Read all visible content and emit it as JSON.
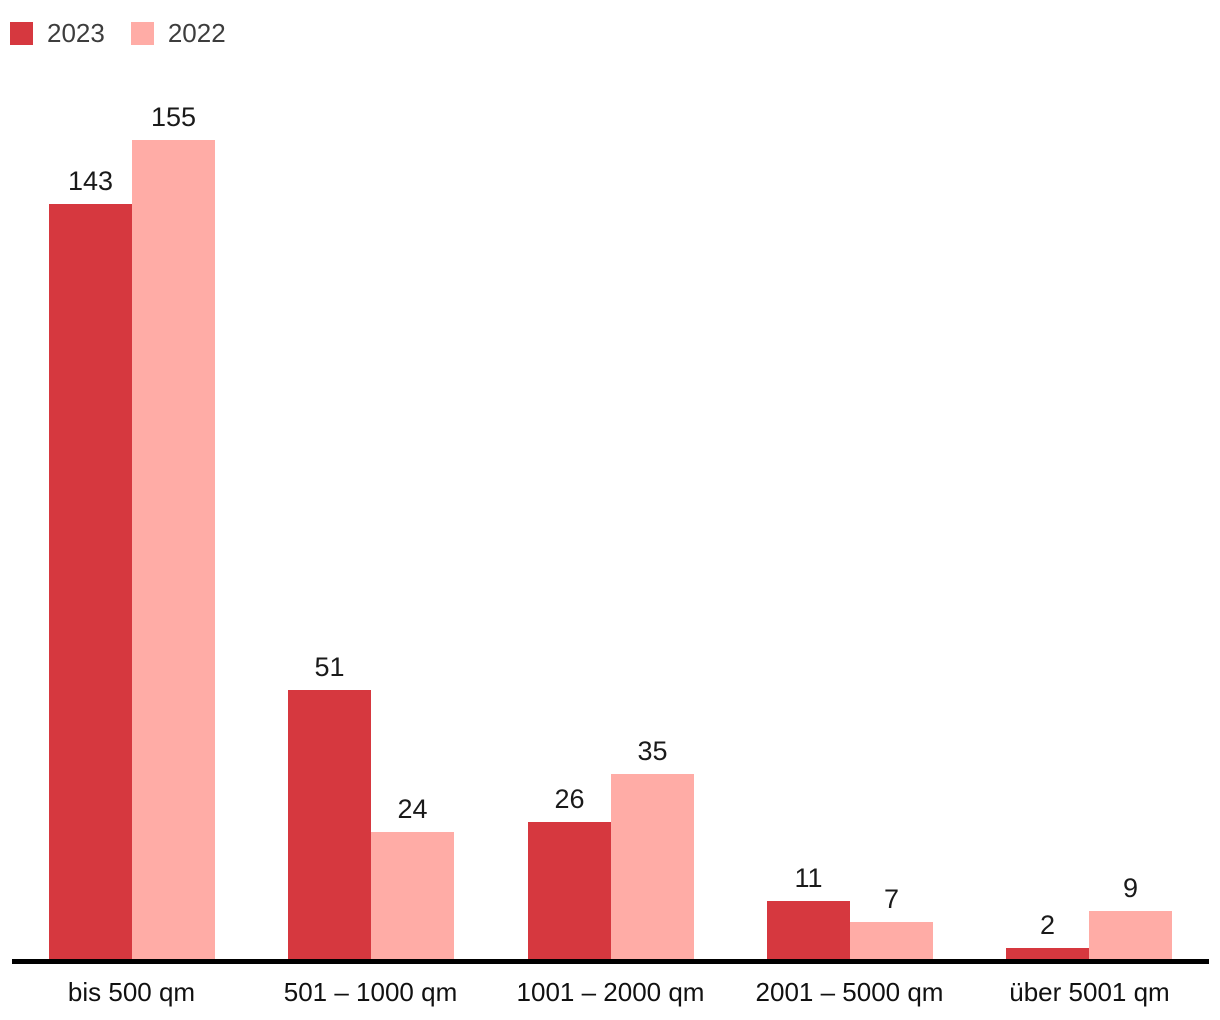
{
  "legend": {
    "items": [
      {
        "label": "2023",
        "color": "#d6383f"
      },
      {
        "label": "2022",
        "color": "#ffaca6"
      }
    ]
  },
  "colors": {
    "axis": "#000000",
    "background": "#ffffff",
    "text": "#1a1a1a"
  },
  "chart_data": {
    "type": "bar",
    "title": "",
    "xlabel": "",
    "ylabel": "",
    "categories": [
      "bis 500 qm",
      "501 – 1000 qm",
      "1001 – 2000 qm",
      "2001 – 5000 qm",
      "über 5001 qm"
    ],
    "series": [
      {
        "name": "2023",
        "color": "#d6383f",
        "values": [
          143,
          51,
          26,
          11,
          2
        ]
      },
      {
        "name": "2022",
        "color": "#ffaca6",
        "values": [
          155,
          24,
          35,
          7,
          9
        ]
      }
    ],
    "ylim": [
      0,
      160
    ],
    "grid": false,
    "legend_position": "top-left",
    "value_labels": true
  }
}
